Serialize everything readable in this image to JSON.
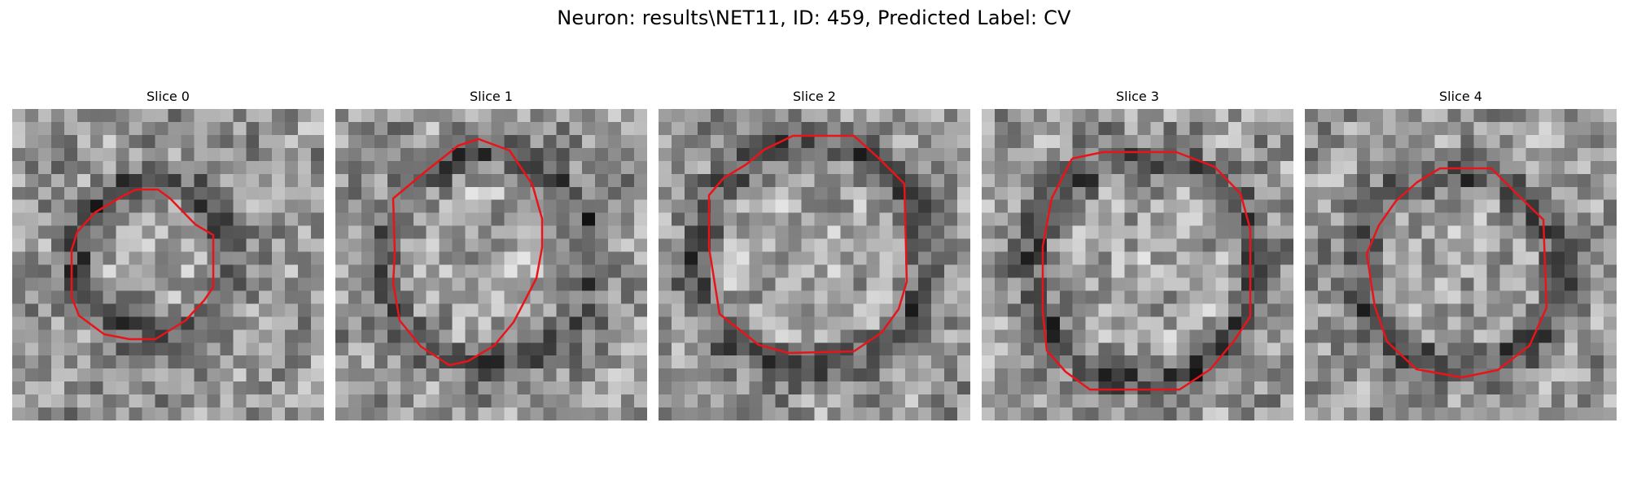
{
  "figure": {
    "title": "Neuron: results\\NET11, ID: 459, Predicted Label: CV"
  },
  "contour_color": "#e8141a",
  "slices": [
    {
      "title": "Slice 0"
    },
    {
      "title": "Slice 1"
    },
    {
      "title": "Slice 2"
    },
    {
      "title": "Slice 3"
    },
    {
      "title": "Slice 4"
    }
  ]
}
